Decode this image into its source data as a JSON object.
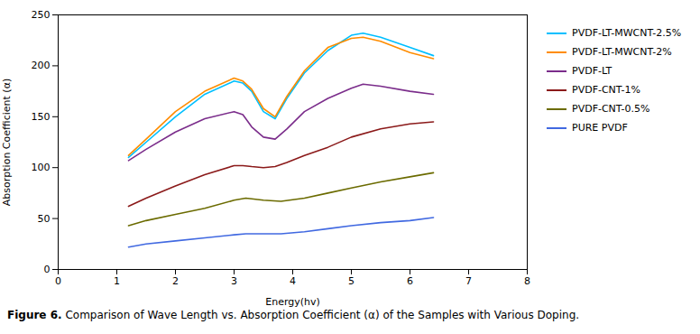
{
  "chart_data": {
    "type": "line",
    "xlabel": "Energy(hv)",
    "ylabel": "Absorption Coefficient (α)",
    "caption_label": "Figure 6.",
    "caption": "Comparison of Wave Length vs. Absorption Coefficient (α) of the Samples with Various Doping.",
    "xlim": [
      0,
      8
    ],
    "ylim": [
      0,
      250
    ],
    "xticks": [
      0,
      1,
      2,
      3,
      4,
      5,
      6,
      7,
      8
    ],
    "yticks": [
      0,
      50,
      100,
      150,
      200,
      250
    ],
    "grid": false,
    "legend": "right",
    "series": [
      {
        "name": "PVDF-LT-MWCNT-2.5%",
        "color": "#00BFFF",
        "x": [
          1.2,
          1.5,
          2.0,
          2.5,
          3.0,
          3.15,
          3.3,
          3.5,
          3.7,
          3.9,
          4.2,
          4.6,
          5.0,
          5.2,
          5.5,
          6.0,
          6.4
        ],
        "values": [
          110,
          125,
          150,
          172,
          185,
          183,
          175,
          155,
          148,
          168,
          193,
          215,
          230,
          232,
          228,
          218,
          210
        ]
      },
      {
        "name": "PVDF-LT-MWCNT-2%",
        "color": "#FF8C00",
        "x": [
          1.2,
          1.5,
          2.0,
          2.5,
          3.0,
          3.15,
          3.3,
          3.5,
          3.7,
          3.9,
          4.2,
          4.6,
          5.0,
          5.2,
          5.5,
          6.0,
          6.4
        ],
        "values": [
          112,
          128,
          155,
          175,
          188,
          185,
          177,
          158,
          150,
          170,
          195,
          218,
          227,
          228,
          224,
          213,
          207
        ]
      },
      {
        "name": "PVDF-LT",
        "color": "#7B2D8B",
        "x": [
          1.2,
          1.5,
          2.0,
          2.5,
          3.0,
          3.15,
          3.3,
          3.5,
          3.7,
          3.9,
          4.2,
          4.6,
          5.0,
          5.2,
          5.5,
          6.0,
          6.4
        ],
        "values": [
          107,
          118,
          135,
          148,
          155,
          152,
          140,
          130,
          128,
          138,
          155,
          168,
          178,
          182,
          180,
          175,
          172
        ]
      },
      {
        "name": "PVDF-CNT-1%",
        "color": "#8B1A1A",
        "x": [
          1.2,
          1.5,
          2.0,
          2.5,
          3.0,
          3.15,
          3.3,
          3.5,
          3.7,
          3.9,
          4.2,
          4.6,
          5.0,
          5.5,
          6.0,
          6.4
        ],
        "values": [
          62,
          70,
          82,
          93,
          102,
          102,
          101,
          100,
          101,
          105,
          112,
          120,
          130,
          138,
          143,
          145
        ]
      },
      {
        "name": "PVDF-CNT-0.5%",
        "color": "#6B6B00",
        "x": [
          1.2,
          1.5,
          2.0,
          2.5,
          3.0,
          3.2,
          3.5,
          3.8,
          4.2,
          4.6,
          5.0,
          5.5,
          6.0,
          6.4
        ],
        "values": [
          43,
          48,
          54,
          60,
          68,
          70,
          68,
          67,
          70,
          75,
          80,
          86,
          91,
          95
        ]
      },
      {
        "name": "PURE PVDF",
        "color": "#4169E1",
        "x": [
          1.2,
          1.5,
          2.0,
          2.5,
          3.0,
          3.2,
          3.5,
          3.8,
          4.2,
          4.6,
          5.0,
          5.5,
          6.0,
          6.4
        ],
        "values": [
          22,
          25,
          28,
          31,
          34,
          35,
          35,
          35,
          37,
          40,
          43,
          46,
          48,
          51
        ]
      }
    ]
  }
}
